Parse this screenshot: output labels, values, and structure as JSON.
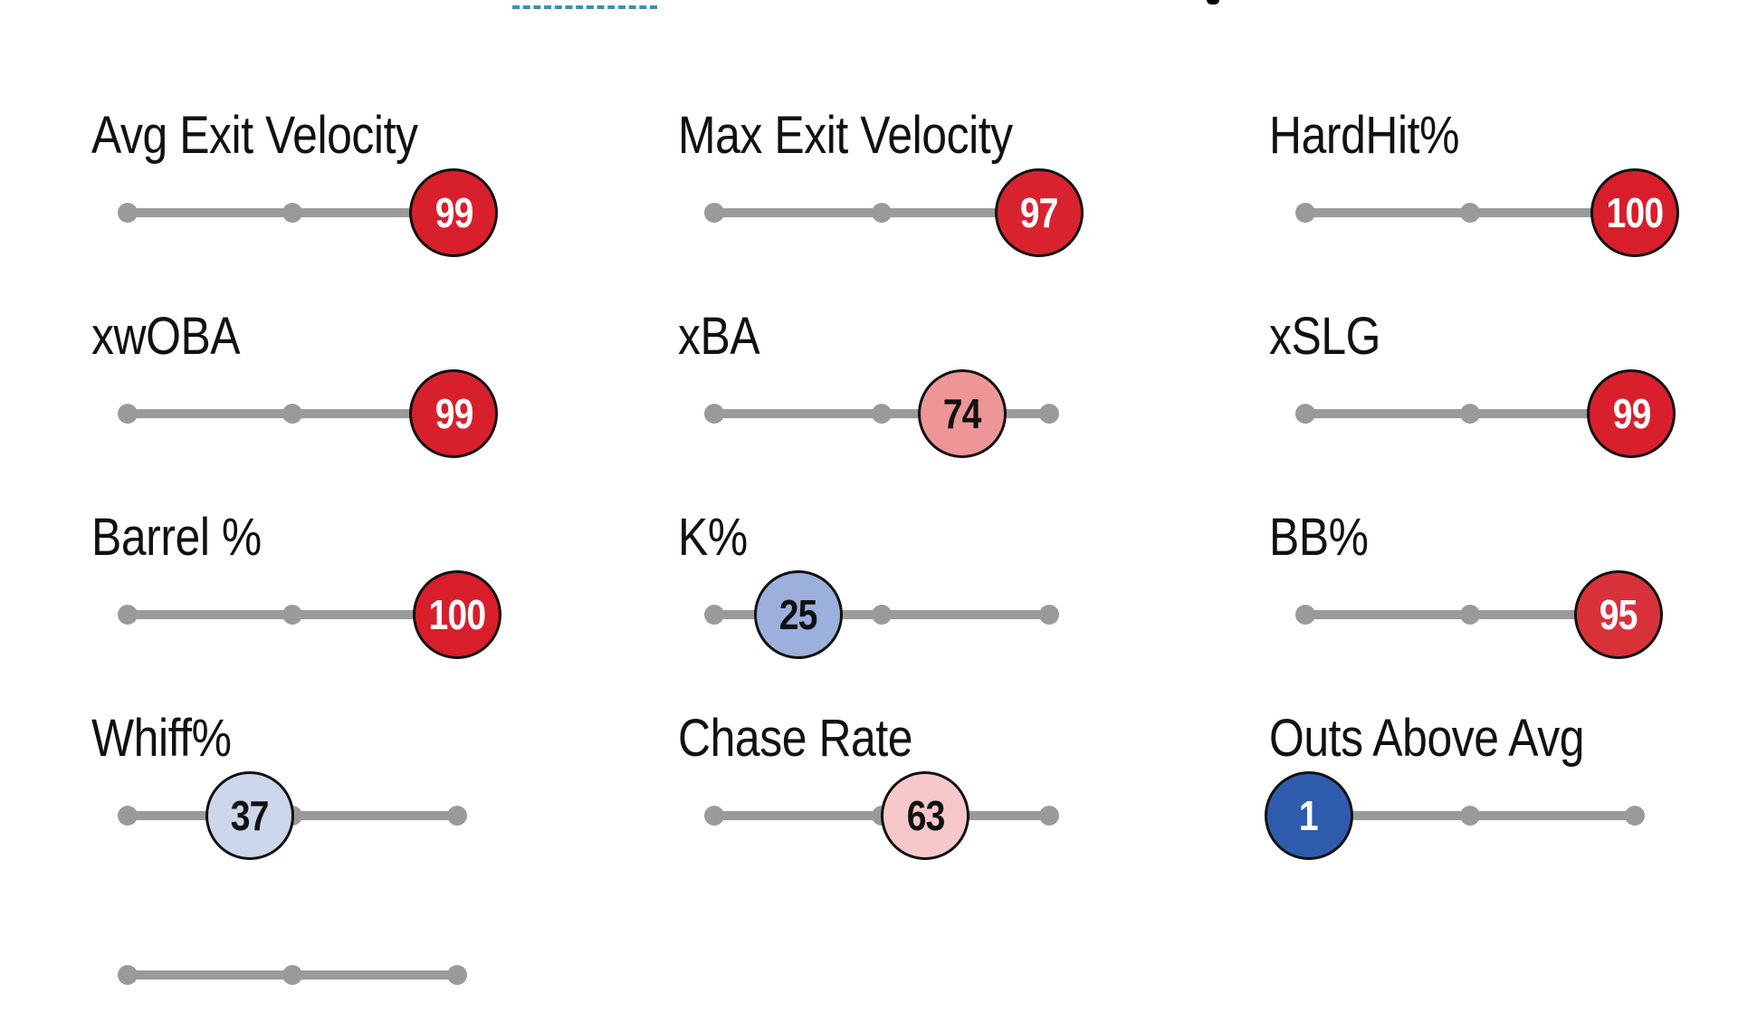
{
  "colors": {
    "track": "#9a9a9a",
    "top_dash": "#3d8fb3"
  },
  "metrics": [
    {
      "label": "Avg Exit Velocity",
      "percentile": 99,
      "fill": "#d8202c",
      "text_color": "#ffffff"
    },
    {
      "label": "Max Exit Velocity",
      "percentile": 97,
      "fill": "#d8232e",
      "text_color": "#ffffff"
    },
    {
      "label": "HardHit%",
      "percentile": 100,
      "fill": "#d81e2b",
      "text_color": "#ffffff"
    },
    {
      "label": "xwOBA",
      "percentile": 99,
      "fill": "#d8202c",
      "text_color": "#ffffff"
    },
    {
      "label": "xBA",
      "percentile": 74,
      "fill": "#ee9597",
      "text_color": "#111111"
    },
    {
      "label": "xSLG",
      "percentile": 99,
      "fill": "#d8202c",
      "text_color": "#ffffff"
    },
    {
      "label": "Barrel %",
      "percentile": 100,
      "fill": "#d81e2b",
      "text_color": "#ffffff"
    },
    {
      "label": "K%",
      "percentile": 25,
      "fill": "#9cb0dd",
      "text_color": "#111111"
    },
    {
      "label": "BB%",
      "percentile": 95,
      "fill": "#d9313a",
      "text_color": "#ffffff"
    },
    {
      "label": "Whiff%",
      "percentile": 37,
      "fill": "#ccd7ec",
      "text_color": "#111111"
    },
    {
      "label": "Chase Rate",
      "percentile": 63,
      "fill": "#f6c8c9",
      "text_color": "#111111"
    },
    {
      "label": "Outs Above Avg",
      "percentile": 1,
      "fill": "#2f5bad",
      "text_color": "#ffffff"
    },
    {
      "label": "",
      "percentile": null,
      "fill": null,
      "text_color": null
    }
  ]
}
